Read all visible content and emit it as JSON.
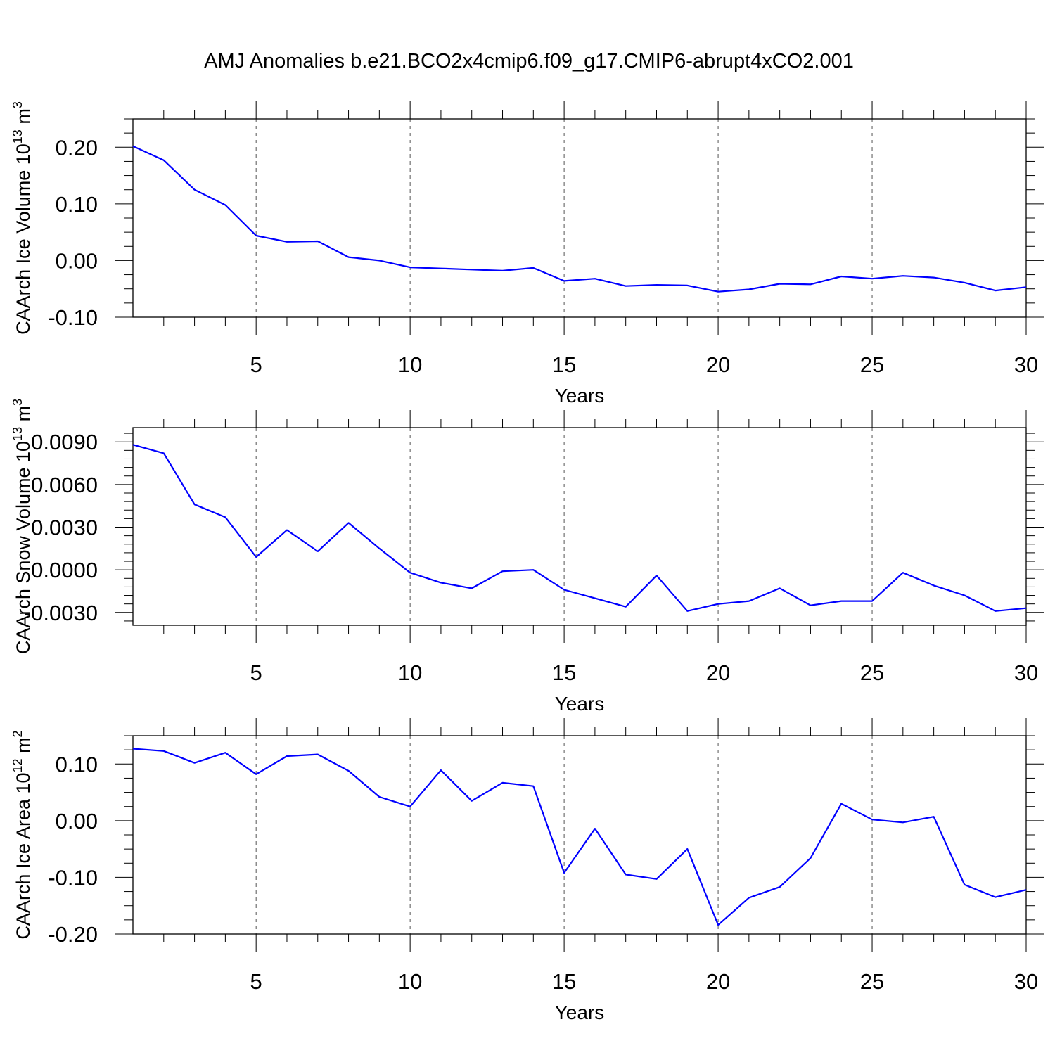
{
  "title": "AMJ Anomalies b.e21.BCO2x4cmip6.f09_g17.CMIP6-abrupt4xCO2.001",
  "chart_data": [
    {
      "type": "line",
      "title": "AMJ Anomalies b.e21.BCO2x4cmip6.f09_g17.CMIP6-abrupt4xCO2.001",
      "ylabel": "CAArch Ice Volume 10",
      "ylabel_exp": "13",
      "ylabel_unit": " m",
      "ylabel_unit_exp": "3",
      "xlabel": "Years",
      "xlim": [
        1,
        30
      ],
      "ylim": [
        -0.1,
        0.25
      ],
      "yticks": [
        -0.1,
        0.0,
        0.1,
        0.2
      ],
      "ytick_labels": [
        "-0.10",
        "0.00",
        "0.10",
        "0.20"
      ],
      "xticks": [
        5,
        10,
        15,
        20,
        25,
        30
      ],
      "xtick_labels": [
        "5",
        "10",
        "15",
        "20",
        "25",
        "30"
      ],
      "grid": "vertical dashed at major x ticks",
      "color": "#0000ff",
      "series": [
        {
          "name": "CAArch Ice Volume",
          "x": [
            1,
            2,
            3,
            4,
            5,
            6,
            7,
            8,
            9,
            10,
            11,
            12,
            13,
            14,
            15,
            16,
            17,
            18,
            19,
            20,
            21,
            22,
            23,
            24,
            25,
            26,
            27,
            28,
            29,
            30
          ],
          "values": [
            0.202,
            0.177,
            0.125,
            0.098,
            0.044,
            0.033,
            0.034,
            0.006,
            0.0,
            -0.012,
            -0.014,
            -0.016,
            -0.018,
            -0.013,
            -0.036,
            -0.032,
            -0.045,
            -0.043,
            -0.044,
            -0.055,
            -0.051,
            -0.041,
            -0.042,
            -0.028,
            -0.032,
            -0.027,
            -0.03,
            -0.039,
            -0.053,
            -0.047
          ]
        }
      ]
    },
    {
      "type": "line",
      "ylabel": "CAArch Snow Volume 10",
      "ylabel_exp": "13",
      "ylabel_unit": " m",
      "ylabel_unit_exp": "3",
      "xlabel": "Years",
      "xlim": [
        1,
        30
      ],
      "ylim": [
        -0.0039,
        0.01
      ],
      "yticks": [
        -0.003,
        0.0,
        0.003,
        0.006,
        0.009
      ],
      "ytick_labels": [
        "-0.0030",
        "0.0000",
        "0.0030",
        "0.0060",
        "0.0090"
      ],
      "xticks": [
        5,
        10,
        15,
        20,
        25,
        30
      ],
      "xtick_labels": [
        "5",
        "10",
        "15",
        "20",
        "25",
        "30"
      ],
      "grid": "vertical dashed at major x ticks",
      "color": "#0000ff",
      "series": [
        {
          "name": "CAArch Snow Volume",
          "x": [
            1,
            2,
            3,
            4,
            5,
            6,
            7,
            8,
            9,
            10,
            11,
            12,
            13,
            14,
            15,
            16,
            17,
            18,
            19,
            20,
            21,
            22,
            23,
            24,
            25,
            26,
            27,
            28,
            29,
            30
          ],
          "values": [
            0.0088,
            0.0082,
            0.0046,
            0.0037,
            0.0009,
            0.0028,
            0.0013,
            0.0033,
            0.0015,
            -0.0002,
            -0.0009,
            -0.0013,
            -0.0001,
            -0.0,
            -0.0014,
            -0.002,
            -0.0026,
            -0.0004,
            -0.0029,
            -0.0024,
            -0.0022,
            -0.0013,
            -0.0025,
            -0.0022,
            -0.0022,
            -0.0002,
            -0.0011,
            -0.0018,
            -0.0029,
            -0.0027
          ]
        }
      ]
    },
    {
      "type": "line",
      "ylabel": "CAArch Ice Area 10",
      "ylabel_exp": "12",
      "ylabel_unit": " m",
      "ylabel_unit_exp": "2",
      "xlabel": "Years",
      "xlim": [
        1,
        30
      ],
      "ylim": [
        -0.2,
        0.15
      ],
      "yticks": [
        -0.2,
        -0.1,
        0.0,
        0.1
      ],
      "ytick_labels": [
        "-0.20",
        "-0.10",
        "0.00",
        "0.10"
      ],
      "xticks": [
        5,
        10,
        15,
        20,
        25,
        30
      ],
      "xtick_labels": [
        "5",
        "10",
        "15",
        "20",
        "25",
        "30"
      ],
      "grid": "vertical dashed at major x ticks",
      "color": "#0000ff",
      "series": [
        {
          "name": "CAArch Ice Area",
          "x": [
            1,
            2,
            3,
            4,
            5,
            6,
            7,
            8,
            9,
            10,
            11,
            12,
            13,
            14,
            15,
            16,
            17,
            18,
            19,
            20,
            21,
            22,
            23,
            24,
            25,
            26,
            27,
            28,
            29,
            30
          ],
          "values": [
            0.127,
            0.123,
            0.102,
            0.12,
            0.082,
            0.114,
            0.117,
            0.088,
            0.042,
            0.025,
            0.089,
            0.035,
            0.067,
            0.061,
            -0.092,
            -0.014,
            -0.095,
            -0.103,
            -0.05,
            -0.184,
            -0.136,
            -0.117,
            -0.066,
            0.03,
            0.002,
            -0.003,
            0.007,
            -0.113,
            -0.135,
            -0.122
          ]
        }
      ]
    }
  ]
}
